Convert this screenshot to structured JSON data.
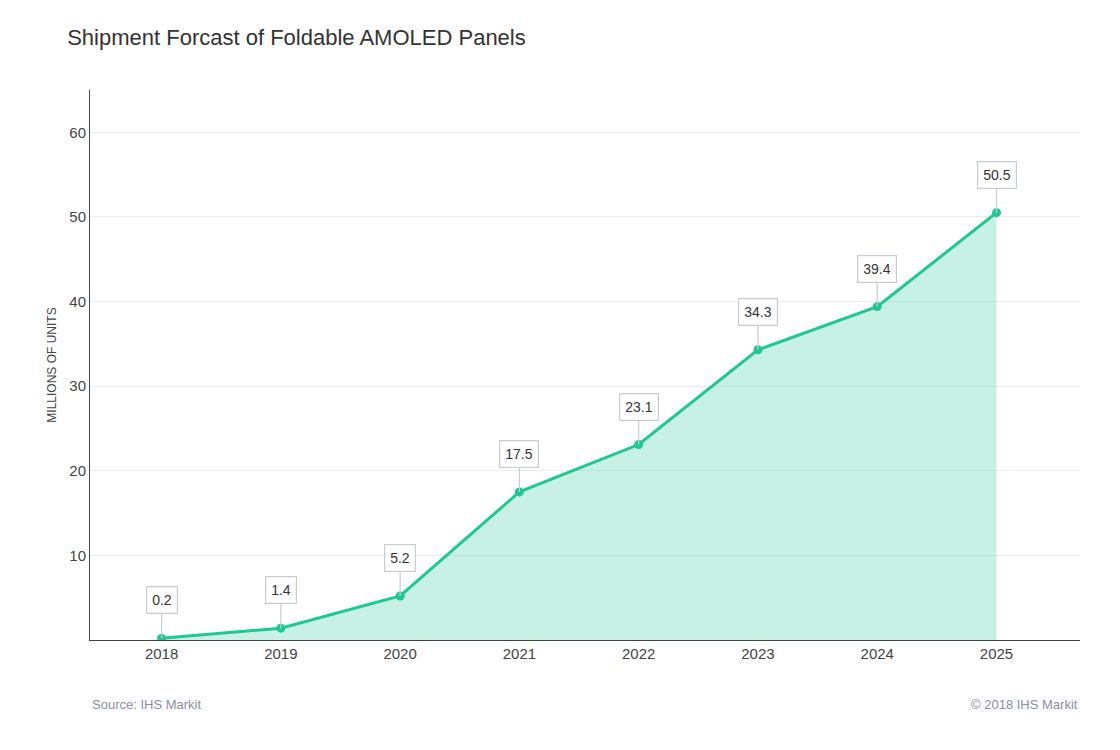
{
  "chart_data": {
    "type": "area",
    "title": "Shipment Forcast of Foldable AMOLED Panels",
    "y_label": "MILLIONS OF UNITS",
    "annotations": [
      "Source: IHS Markit",
      "© 2018 IHS Markit"
    ],
    "x": [
      2018,
      2019,
      2020,
      2021,
      2022,
      2023,
      2024,
      2025
    ],
    "values": [
      0.2,
      1.4,
      5.2,
      17.5,
      23.1,
      34.3,
      39.4,
      50.5
    ],
    "color": "#1ec893",
    "marker": "circle",
    "xlim": [
      2017.4,
      2025.7
    ],
    "xticks": [
      2018,
      2019,
      2020,
      2021,
      2022,
      2023,
      2024,
      2025
    ],
    "ylim": [
      0,
      65
    ],
    "yticks": [
      10,
      20,
      30,
      40,
      50,
      60
    ],
    "grid": true,
    "data_labels": true
  }
}
